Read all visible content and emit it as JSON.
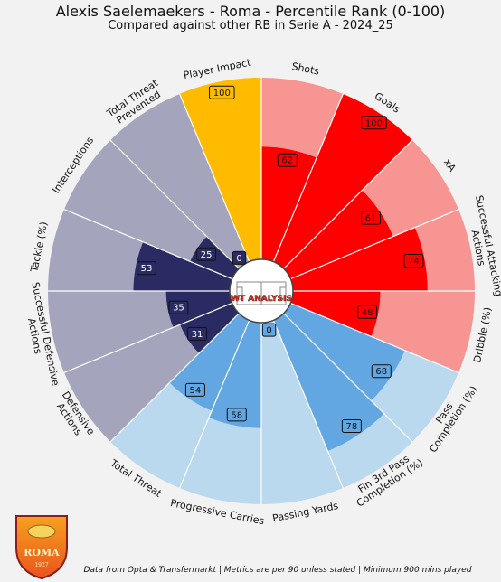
{
  "header": {
    "title": "Alexis Saelemaekers - Roma - Percentile Rank (0-100)",
    "subtitle": "Compared against other RB in Serie A - 2024_25"
  },
  "logo": {
    "text": "WT ANALYSIS"
  },
  "club_badge": {
    "text": "ROMA",
    "year": "1927"
  },
  "footer": {
    "text": "Data from Opta & Transfermarkt | Metrics are per 90 unless stated | Minimum 900 mins played"
  },
  "colors": {
    "attack_bg": "#f79593",
    "attack": "#ff0000",
    "possession_bg": "#bad8ee",
    "possession": "#62a6e2",
    "defence_bg": "#a4a5bd",
    "defence": "#2a2b62",
    "highlight": "#ffbb00",
    "background": "#f2f2f2"
  },
  "chart_data": {
    "type": "polar-bar",
    "title": "Alexis Saelemaekers - Roma - Percentile Rank (0-100)",
    "subtitle": "Compared against other RB in Serie A - 2024_25",
    "rlim": [
      0,
      100
    ],
    "metrics": [
      {
        "label": "Shots",
        "value": 62,
        "group": "attack"
      },
      {
        "label": "Goals",
        "value": 100,
        "group": "attack"
      },
      {
        "label": "xA",
        "value": 61,
        "group": "attack"
      },
      {
        "label": "Successful Attacking Actions",
        "value": 74,
        "group": "attack"
      },
      {
        "label": "Dribble (%)",
        "value": 48,
        "group": "attack"
      },
      {
        "label": "Pass Completion (%)",
        "value": 68,
        "group": "possession"
      },
      {
        "label": "Fin 3rd Pass Completion (%)",
        "value": 78,
        "group": "possession"
      },
      {
        "label": "Passing Yards",
        "value": 0,
        "group": "possession"
      },
      {
        "label": "Progressive Carries",
        "value": 58,
        "group": "possession"
      },
      {
        "label": "Total Threat",
        "value": 54,
        "group": "possession"
      },
      {
        "label": "Defensive Actions",
        "value": 31,
        "group": "defence"
      },
      {
        "label": "Successful Defensive Actions",
        "value": 35,
        "group": "defence"
      },
      {
        "label": "Tackle (%)",
        "value": 53,
        "group": "defence"
      },
      {
        "label": "Interceptions",
        "value": 25,
        "group": "defence"
      },
      {
        "label": "Total Threat Prevented",
        "value": 0,
        "group": "defence"
      },
      {
        "label": "Player Impact",
        "value": 100,
        "group": "highlight"
      }
    ]
  }
}
